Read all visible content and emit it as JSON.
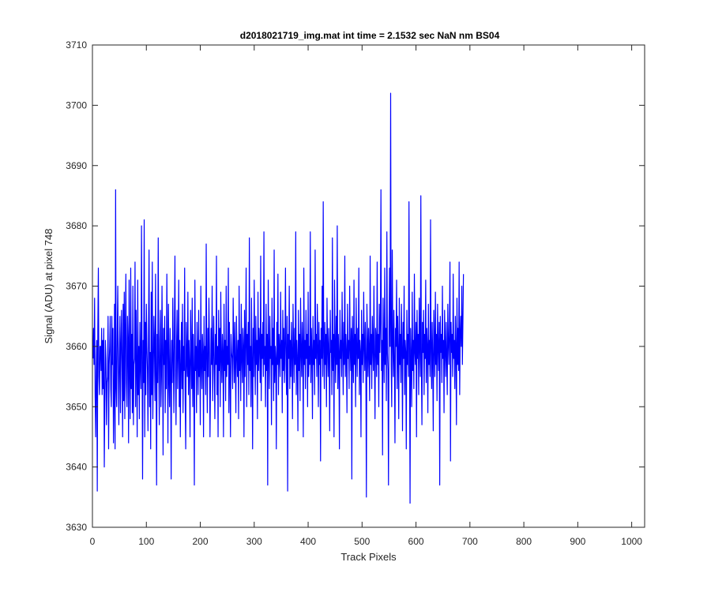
{
  "chart_data": {
    "type": "line",
    "title": "d2018021719_img.mat int time = 2.1532 sec  NaN nm BS04",
    "xlabel": "Track Pixels",
    "ylabel": "Signal (ADU) at pixel 748",
    "xlim": [
      0,
      1024
    ],
    "ylim": [
      3630,
      3710
    ],
    "xticks": [
      0,
      100,
      200,
      300,
      400,
      500,
      600,
      700,
      800,
      900,
      1000
    ],
    "yticks": [
      3630,
      3640,
      3650,
      3660,
      3670,
      3680,
      3690,
      3700,
      3710
    ],
    "grid": false,
    "line_color": "#0000ff",
    "series": [
      {
        "x_start": 1,
        "x_step": 1,
        "values": [
          3658,
          3663,
          3657,
          3668,
          3652,
          3645,
          3656,
          3661,
          3636,
          3663,
          3673,
          3655,
          3652,
          3660,
          3660,
          3656,
          3663,
          3652,
          3661,
          3653,
          3663,
          3640,
          3651,
          3661,
          3658,
          3647,
          3654,
          3655,
          3665,
          3643,
          3657,
          3660,
          3665,
          3653,
          3650,
          3665,
          3657,
          3663,
          3644,
          3651,
          3667,
          3643,
          3686,
          3653,
          3650,
          3662,
          3670,
          3656,
          3647,
          3658,
          3665,
          3649,
          3660,
          3666,
          3657,
          3645,
          3667,
          3651,
          3669,
          3648,
          3663,
          3672,
          3654,
          3650,
          3665,
          3661,
          3644,
          3671,
          3656,
          3648,
          3673,
          3653,
          3662,
          3649,
          3670,
          3647,
          3657,
          3658,
          3674,
          3650,
          3666,
          3656,
          3645,
          3671,
          3652,
          3660,
          3648,
          3664,
          3657,
          3653,
          3680,
          3659,
          3638,
          3661,
          3654,
          3681,
          3645,
          3664,
          3652,
          3667,
          3660,
          3656,
          3646,
          3662,
          3676,
          3650,
          3659,
          3643,
          3669,
          3652,
          3674,
          3648,
          3656,
          3665,
          3660,
          3651,
          3672,
          3655,
          3637,
          3662,
          3654,
          3678,
          3657,
          3647,
          3661,
          3666,
          3650,
          3655,
          3670,
          3659,
          3642,
          3663,
          3657,
          3665,
          3649,
          3661,
          3653,
          3672,
          3660,
          3644,
          3667,
          3655,
          3650,
          3663,
          3656,
          3638,
          3661,
          3654,
          3668,
          3658,
          3649,
          3663,
          3675,
          3655,
          3647,
          3660,
          3666,
          3653,
          3659,
          3671,
          3650,
          3661,
          3645,
          3657,
          3664,
          3653,
          3667,
          3649,
          3660,
          3656,
          3673,
          3651,
          3643,
          3664,
          3658,
          3655,
          3669,
          3652,
          3661,
          3657,
          3645,
          3666,
          3659,
          3653,
          3668,
          3650,
          3662,
          3655,
          3637,
          3671,
          3656,
          3660,
          3649,
          3664,
          3658,
          3652,
          3666,
          3655,
          3661,
          3647,
          3670,
          3657,
          3653,
          3662,
          3659,
          3645,
          3665,
          3656,
          3660,
          3652,
          3677,
          3658,
          3649,
          3663,
          3655,
          3668,
          3660,
          3645,
          3654,
          3663,
          3657,
          3670,
          3651,
          3659,
          3665,
          3656,
          3648,
          3662,
          3657,
          3675,
          3652,
          3660,
          3645,
          3666,
          3656,
          3663,
          3650,
          3669,
          3658,
          3654,
          3662,
          3659,
          3645,
          3667,
          3656,
          3661,
          3651,
          3670,
          3655,
          3660,
          3657,
          3673,
          3649,
          3664,
          3656,
          3645,
          3662,
          3659,
          3658,
          3653,
          3668,
          3660,
          3654,
          3664,
          3657,
          3649,
          3665,
          3659,
          3655,
          3661,
          3648,
          3670,
          3656,
          3662,
          3651,
          3667,
          3658,
          3654,
          3663,
          3660,
          3645,
          3666,
          3655,
          3661,
          3673,
          3650,
          3662,
          3657,
          3664,
          3652,
          3678,
          3656,
          3660,
          3650,
          3668,
          3658,
          3643,
          3663,
          3655,
          3671,
          3659,
          3652,
          3665,
          3657,
          3661,
          3648,
          3669,
          3656,
          3663,
          3660,
          3654,
          3675,
          3651,
          3662,
          3658,
          3664,
          3655,
          3679,
          3657,
          3660,
          3650,
          3667,
          3656,
          3662,
          3637,
          3671,
          3659,
          3653,
          3665,
          3658,
          3660,
          3647,
          3668,
          3657,
          3663,
          3651,
          3676,
          3654,
          3660,
          3658,
          3643,
          3664,
          3657,
          3672,
          3652,
          3662,
          3659,
          3655,
          3669,
          3658,
          3661,
          3649,
          3666,
          3656,
          3663,
          3654,
          3660,
          3673,
          3657,
          3652,
          3665,
          3636,
          3662,
          3658,
          3670,
          3653,
          3661,
          3655,
          3664,
          3659,
          3648,
          3667,
          3660,
          3654,
          3663,
          3657,
          3679,
          3652,
          3661,
          3658,
          3646,
          3666,
          3656,
          3662,
          3651,
          3668,
          3659,
          3655,
          3664,
          3660,
          3645,
          3673,
          3657,
          3661,
          3653,
          3666,
          3658,
          3662,
          3650,
          3669,
          3655,
          3660,
          3657,
          3679,
          3654,
          3663,
          3659,
          3648,
          3665,
          3657,
          3661,
          3652,
          3676,
          3658,
          3662,
          3655,
          3667,
          3660,
          3650,
          3664,
          3657,
          3661,
          3641,
          3663,
          3658,
          3670,
          3655,
          3684,
          3659,
          3653,
          3664,
          3657,
          3662,
          3650,
          3668,
          3660,
          3655,
          3663,
          3658,
          3646,
          3666,
          3659,
          3661,
          3652,
          3678,
          3656,
          3662,
          3645,
          3671,
          3660,
          3654,
          3665,
          3657,
          3680,
          3653,
          3662,
          3659,
          3643,
          3666,
          3658,
          3661,
          3655,
          3669,
          3660,
          3652,
          3664,
          3657,
          3675,
          3655,
          3662,
          3659,
          3649,
          3667,
          3658,
          3661,
          3653,
          3670,
          3660,
          3656,
          3663,
          3638,
          3665,
          3659,
          3654,
          3671,
          3657,
          3662,
          3650,
          3668,
          3660,
          3655,
          3663,
          3658,
          3673,
          3652,
          3661,
          3659,
          3645,
          3666,
          3657,
          3662,
          3654,
          3669,
          3660,
          3656,
          3664,
          3658,
          3635,
          3667,
          3661,
          3655,
          3663,
          3659,
          3651,
          3675,
          3657,
          3662,
          3653,
          3665,
          3660,
          3656,
          3670,
          3658,
          3648,
          3663,
          3661,
          3655,
          3674,
          3657,
          3662,
          3650,
          3667,
          3659,
          3664,
          3686,
          3656,
          3661,
          3642,
          3668,
          3660,
          3654,
          3673,
          3657,
          3663,
          3651,
          3679,
          3659,
          3656,
          3637,
          3664,
          3673,
          3660,
          3702,
          3657,
          3650,
          3676,
          3661,
          3655,
          3666,
          3658,
          3644,
          3663,
          3660,
          3671,
          3653,
          3665,
          3659,
          3648,
          3668,
          3657,
          3662,
          3654,
          3667,
          3660,
          3646,
          3664,
          3658,
          3670,
          3652,
          3661,
          3659,
          3643,
          3666,
          3657,
          3662,
          3655,
          3684,
          3660,
          3634,
          3663,
          3658,
          3650,
          3669,
          3656,
          3661,
          3653,
          3672,
          3659,
          3657,
          3664,
          3645,
          3666,
          3658,
          3662,
          3652,
          3668,
          3660,
          3655,
          3685,
          3657,
          3647,
          3664,
          3659,
          3666,
          3652,
          3662,
          3658,
          3671,
          3654,
          3663,
          3660,
          3649,
          3667,
          3657,
          3661,
          3655,
          3681,
          3659,
          3653,
          3664,
          3658,
          3646,
          3666,
          3661,
          3655,
          3669,
          3657,
          3662,
          3651,
          3667,
          3660,
          3656,
          3664,
          3637,
          3665,
          3659,
          3662,
          3654,
          3670,
          3658,
          3661,
          3649,
          3666,
          3660,
          3655,
          3664,
          3658,
          3652,
          3667,
          3661,
          3657,
          3663,
          3674,
          3641,
          3664,
          3659,
          3662,
          3655,
          3672,
          3658,
          3661,
          3653,
          3665,
          3660,
          3647,
          3668,
          3657,
          3663,
          3656,
          3674,
          3652,
          3662,
          3665,
          3660,
          3670,
          3657,
          3664,
          3672
        ]
      }
    ]
  }
}
